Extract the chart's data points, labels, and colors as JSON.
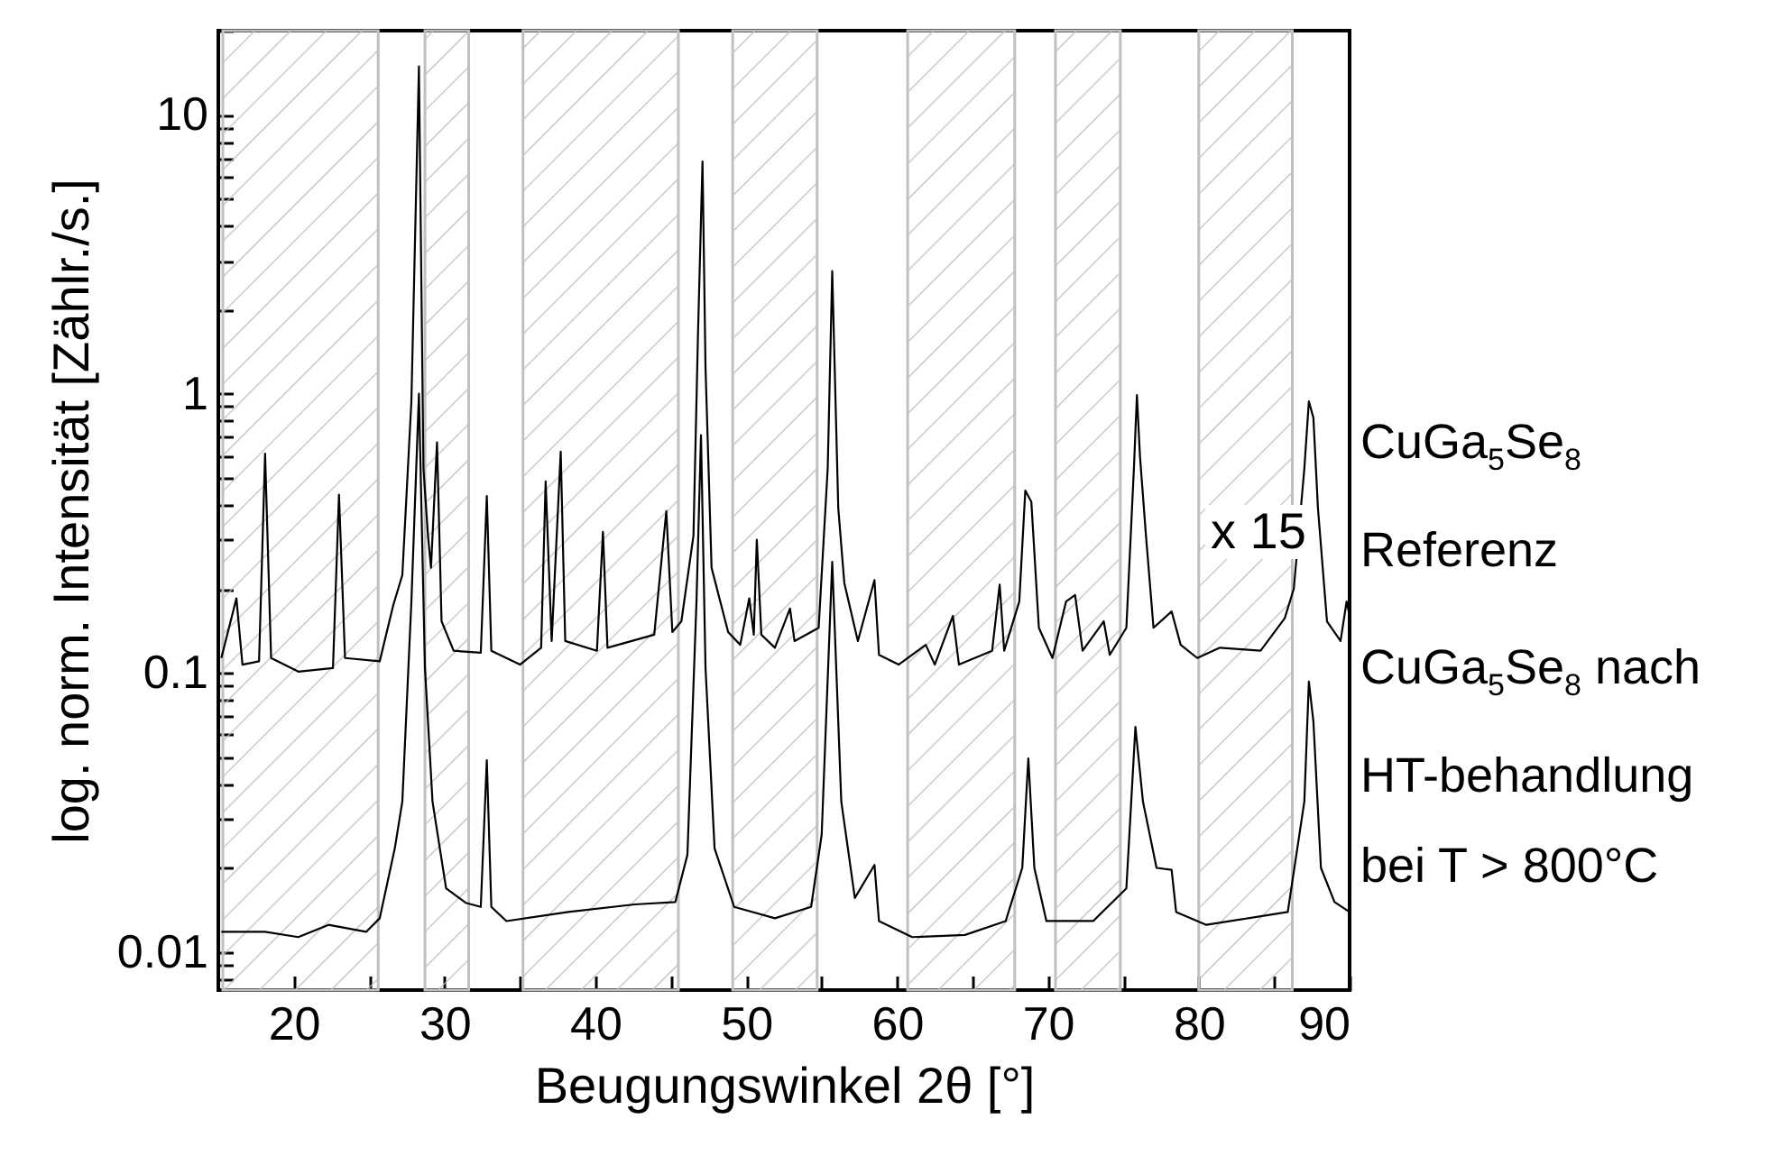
{
  "chart_data": {
    "type": "line",
    "xlabel": "Beugungswinkel 2θ [°]",
    "ylabel": "log. norm. Intensität [Zählr./s.]",
    "log": "y",
    "grid": false,
    "legend": false,
    "xlim": [
      15,
      90
    ],
    "ylim": [
      0.0073,
      20
    ],
    "xticks": [
      20,
      {
        "value": 25,
        "label": null
      },
      30,
      {
        "value": 35,
        "label": null
      },
      40,
      {
        "value": 45,
        "label": null
      },
      50,
      {
        "value": 55,
        "label": null
      },
      60,
      {
        "value": 65,
        "label": null
      },
      70,
      {
        "value": 75,
        "label": null
      },
      80,
      {
        "value": 85,
        "label": null
      },
      90
    ],
    "yticks": [
      {
        "value": 0.008,
        "label": null
      },
      {
        "value": 0.009,
        "label": null
      },
      0.01,
      {
        "value": 0.02,
        "label": null
      },
      {
        "value": 0.03,
        "label": null
      },
      {
        "value": 0.04,
        "label": null
      },
      {
        "value": 0.05,
        "label": null
      },
      {
        "value": 0.06,
        "label": null
      },
      {
        "value": 0.07,
        "label": null
      },
      {
        "value": 0.08,
        "label": null
      },
      {
        "value": 0.09,
        "label": null
      },
      0.1,
      {
        "value": 0.2,
        "label": null
      },
      {
        "value": 0.3,
        "label": null
      },
      {
        "value": 0.4,
        "label": null
      },
      {
        "value": 0.5,
        "label": null
      },
      {
        "value": 0.6,
        "label": null
      },
      {
        "value": 0.7,
        "label": null
      },
      {
        "value": 0.8,
        "label": null
      },
      {
        "value": 0.9,
        "label": null
      },
      1,
      {
        "value": 2,
        "label": null
      },
      {
        "value": 3,
        "label": null
      },
      {
        "value": 4,
        "label": null
      },
      {
        "value": 5,
        "label": null
      },
      {
        "value": 6,
        "label": null
      },
      {
        "value": 7,
        "label": null
      },
      {
        "value": 8,
        "label": null
      },
      {
        "value": 9,
        "label": null
      },
      10,
      {
        "value": 20,
        "label": null
      }
    ],
    "series": [
      {
        "name": "CuGa$_{5}$Se$_{8}$ Referenz",
        "color": "#000000",
        "x": [
          15.2,
          16.2,
          16.6,
          17.7,
          18.1,
          18.5,
          20.3,
          22.6,
          23.0,
          23.4,
          25.7,
          26.6,
          27.2,
          27.8,
          28.3,
          28.6,
          28.9,
          29.1,
          29.5,
          29.8,
          30.6,
          32.4,
          32.8,
          33.1,
          35.0,
          36.4,
          36.7,
          37.1,
          37.7,
          38.0,
          40.1,
          40.5,
          40.8,
          43.9,
          44.7,
          45.1,
          45.7,
          46.5,
          46.8,
          47.1,
          47.3,
          47.7,
          48.8,
          49.6,
          50.2,
          50.5,
          50.7,
          51.0,
          51.9,
          52.9,
          53.2,
          54.8,
          55.4,
          55.7,
          56.1,
          56.5,
          57.4,
          58.5,
          58.8,
          60.1,
          61.9,
          62.5,
          63.7,
          64.1,
          66.3,
          66.8,
          67.1,
          68.1,
          68.5,
          68.9,
          69.4,
          70.3,
          71.2,
          71.8,
          72.3,
          73.7,
          74.1,
          75.2,
          75.7,
          75.9,
          76.1,
          76.5,
          77.0,
          78.2,
          78.8,
          79.9,
          81.4,
          84.1,
          85.7,
          86.3,
          87.0,
          87.3,
          87.6,
          87.9,
          88.5,
          89.4,
          89.8,
          90.0
        ],
        "values": [
          0.113,
          0.185,
          0.107,
          0.11,
          0.61,
          0.113,
          0.101,
          0.104,
          0.435,
          0.113,
          0.11,
          0.175,
          0.224,
          0.94,
          14.9,
          0.54,
          0.31,
          0.238,
          0.67,
          0.153,
          0.12,
          0.118,
          0.43,
          0.12,
          0.107,
          0.123,
          0.485,
          0.13,
          0.62,
          0.13,
          0.12,
          0.32,
          0.123,
          0.137,
          0.38,
          0.14,
          0.153,
          0.31,
          1.63,
          6.8,
          1.24,
          0.238,
          0.14,
          0.126,
          0.185,
          0.137,
          0.3,
          0.137,
          0.123,
          0.17,
          0.13,
          0.145,
          0.54,
          2.75,
          0.39,
          0.21,
          0.13,
          0.215,
          0.116,
          0.107,
          0.126,
          0.107,
          0.16,
          0.107,
          0.12,
          0.207,
          0.12,
          0.18,
          0.45,
          0.41,
          0.145,
          0.113,
          0.18,
          0.19,
          0.12,
          0.153,
          0.116,
          0.145,
          0.54,
          0.99,
          0.6,
          0.31,
          0.145,
          0.166,
          0.126,
          0.113,
          0.123,
          0.12,
          0.157,
          0.2,
          0.54,
          0.94,
          0.82,
          0.39,
          0.153,
          0.13,
          0.18,
          0.16
        ]
      },
      {
        "name": "CuGa$_{5}$Se$_{8}$ nach HT-behandlung bei T > 800°C",
        "color": "#000000",
        "x": [
          15.2,
          18.1,
          20.3,
          22.3,
          24.8,
          25.7,
          26.7,
          27.2,
          27.8,
          28.3,
          28.7,
          29.2,
          30.1,
          31.4,
          32.4,
          32.8,
          33.1,
          34.1,
          38.2,
          42.6,
          45.3,
          46.1,
          46.7,
          47.0,
          47.3,
          47.9,
          49.2,
          51.9,
          54.3,
          55.0,
          55.7,
          56.3,
          57.2,
          58.5,
          58.8,
          61.0,
          64.5,
          67.2,
          68.3,
          68.7,
          69.1,
          69.9,
          73.0,
          75.2,
          75.8,
          76.3,
          77.2,
          78.2,
          78.5,
          80.5,
          85.9,
          87.0,
          87.3,
          87.6,
          88.1,
          89.0,
          90.0
        ],
        "values": [
          0.0118,
          0.0118,
          0.0113,
          0.0125,
          0.0118,
          0.0132,
          0.0235,
          0.0346,
          0.18,
          1.0,
          0.104,
          0.0346,
          0.0169,
          0.015,
          0.0145,
          0.0486,
          0.0145,
          0.0129,
          0.0139,
          0.0148,
          0.0151,
          0.0223,
          0.18,
          0.71,
          0.104,
          0.0235,
          0.0145,
          0.0132,
          0.0145,
          0.0263,
          0.25,
          0.0346,
          0.0156,
          0.0205,
          0.0129,
          0.0113,
          0.0115,
          0.0129,
          0.02,
          0.0494,
          0.02,
          0.0129,
          0.0129,
          0.0169,
          0.064,
          0.0346,
          0.02,
          0.0197,
          0.0139,
          0.0125,
          0.0139,
          0.0346,
          0.093,
          0.067,
          0.02,
          0.0151,
          0.0139
        ]
      }
    ],
    "bands": [
      {
        "axis": "x",
        "from": 15.3,
        "to": 25.6,
        "color": "#c0c0c0"
      },
      {
        "axis": "x",
        "from": 28.7,
        "to": 31.6,
        "color": "#c0c0c0"
      },
      {
        "axis": "x",
        "from": 35.2,
        "to": 45.5,
        "color": "#c0c0c0"
      },
      {
        "axis": "x",
        "from": 49.1,
        "to": 54.7,
        "color": "#c0c0c0"
      },
      {
        "axis": "x",
        "from": 60.7,
        "to": 67.8,
        "color": "#c0c0c0"
      },
      {
        "axis": "x",
        "from": 70.5,
        "to": 74.8,
        "color": "#c0c0c0"
      },
      {
        "axis": "x",
        "from": 80.0,
        "to": 86.2,
        "color": "#c0c0c0"
      }
    ],
    "annotations": [
      "x 15"
    ]
  }
}
